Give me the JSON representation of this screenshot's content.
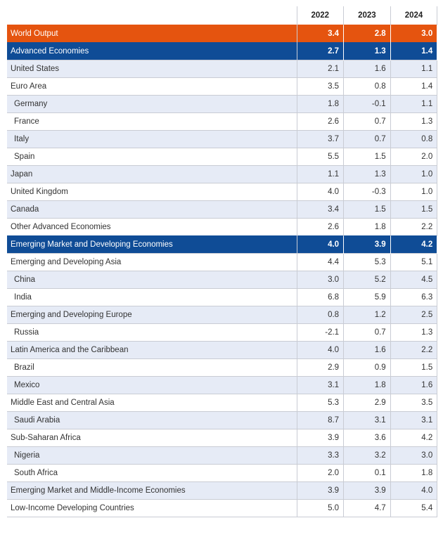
{
  "table": {
    "years": [
      "2022",
      "2023",
      "2024"
    ],
    "rows": [
      {
        "label": "World Output",
        "v": [
          "3.4",
          "2.8",
          "3.0"
        ],
        "style": "world",
        "indent": false
      },
      {
        "label": "Advanced Economies",
        "v": [
          "2.7",
          "1.3",
          "1.4"
        ],
        "style": "hdr",
        "indent": false
      },
      {
        "label": "United States",
        "v": [
          "2.1",
          "1.6",
          "1.1"
        ],
        "style": "even",
        "indent": false
      },
      {
        "label": "Euro Area",
        "v": [
          "3.5",
          "0.8",
          "1.4"
        ],
        "style": "odd",
        "indent": false
      },
      {
        "label": "Germany",
        "v": [
          "1.8",
          "-0.1",
          "1.1"
        ],
        "style": "even",
        "indent": true
      },
      {
        "label": "France",
        "v": [
          "2.6",
          "0.7",
          "1.3"
        ],
        "style": "odd",
        "indent": true
      },
      {
        "label": "Italy",
        "v": [
          "3.7",
          "0.7",
          "0.8"
        ],
        "style": "even",
        "indent": true
      },
      {
        "label": "Spain",
        "v": [
          "5.5",
          "1.5",
          "2.0"
        ],
        "style": "odd",
        "indent": true
      },
      {
        "label": "Japan",
        "v": [
          "1.1",
          "1.3",
          "1.0"
        ],
        "style": "even",
        "indent": false
      },
      {
        "label": "United Kingdom",
        "v": [
          "4.0",
          "-0.3",
          "1.0"
        ],
        "style": "odd",
        "indent": false
      },
      {
        "label": "Canada",
        "v": [
          "3.4",
          "1.5",
          "1.5"
        ],
        "style": "even",
        "indent": false
      },
      {
        "label": "Other Advanced Economies",
        "v": [
          "2.6",
          "1.8",
          "2.2"
        ],
        "style": "odd",
        "indent": false
      },
      {
        "label": "Emerging Market and Developing Economies",
        "v": [
          "4.0",
          "3.9",
          "4.2"
        ],
        "style": "hdr",
        "indent": false
      },
      {
        "label": "Emerging and Developing Asia",
        "v": [
          "4.4",
          "5.3",
          "5.1"
        ],
        "style": "odd",
        "indent": false
      },
      {
        "label": "China",
        "v": [
          "3.0",
          "5.2",
          "4.5"
        ],
        "style": "even",
        "indent": true
      },
      {
        "label": "India",
        "v": [
          "6.8",
          "5.9",
          "6.3"
        ],
        "style": "odd",
        "indent": true
      },
      {
        "label": "Emerging and Developing Europe",
        "v": [
          "0.8",
          "1.2",
          "2.5"
        ],
        "style": "even",
        "indent": false
      },
      {
        "label": "Russia",
        "v": [
          "-2.1",
          "0.7",
          "1.3"
        ],
        "style": "odd",
        "indent": true
      },
      {
        "label": "Latin America and the Caribbean",
        "v": [
          "4.0",
          "1.6",
          "2.2"
        ],
        "style": "even",
        "indent": false
      },
      {
        "label": "Brazil",
        "v": [
          "2.9",
          "0.9",
          "1.5"
        ],
        "style": "odd",
        "indent": true
      },
      {
        "label": "Mexico",
        "v": [
          "3.1",
          "1.8",
          "1.6"
        ],
        "style": "even",
        "indent": true
      },
      {
        "label": "Middle East and Central Asia",
        "v": [
          "5.3",
          "2.9",
          "3.5"
        ],
        "style": "odd",
        "indent": false
      },
      {
        "label": "Saudi Arabia",
        "v": [
          "8.7",
          "3.1",
          "3.1"
        ],
        "style": "even",
        "indent": true
      },
      {
        "label": "Sub-Saharan Africa",
        "v": [
          "3.9",
          "3.6",
          "4.2"
        ],
        "style": "odd",
        "indent": false
      },
      {
        "label": "Nigeria",
        "v": [
          "3.3",
          "3.2",
          "3.0"
        ],
        "style": "even",
        "indent": true
      },
      {
        "label": "South Africa",
        "v": [
          "2.0",
          "0.1",
          "1.8"
        ],
        "style": "odd",
        "indent": true
      },
      {
        "label": "Emerging Market and Middle-Income Economies",
        "v": [
          "3.9",
          "3.9",
          "4.0"
        ],
        "style": "even",
        "indent": false
      },
      {
        "label": "Low-Income Developing Countries",
        "v": [
          "5.0",
          "4.7",
          "5.4"
        ],
        "style": "odd",
        "indent": false
      }
    ]
  },
  "colors": {
    "world_row": "#e5540f",
    "group_header_row": "#0f4c96",
    "alt_row": "#e6ebf6",
    "grid_line": "#c9ccd4"
  }
}
